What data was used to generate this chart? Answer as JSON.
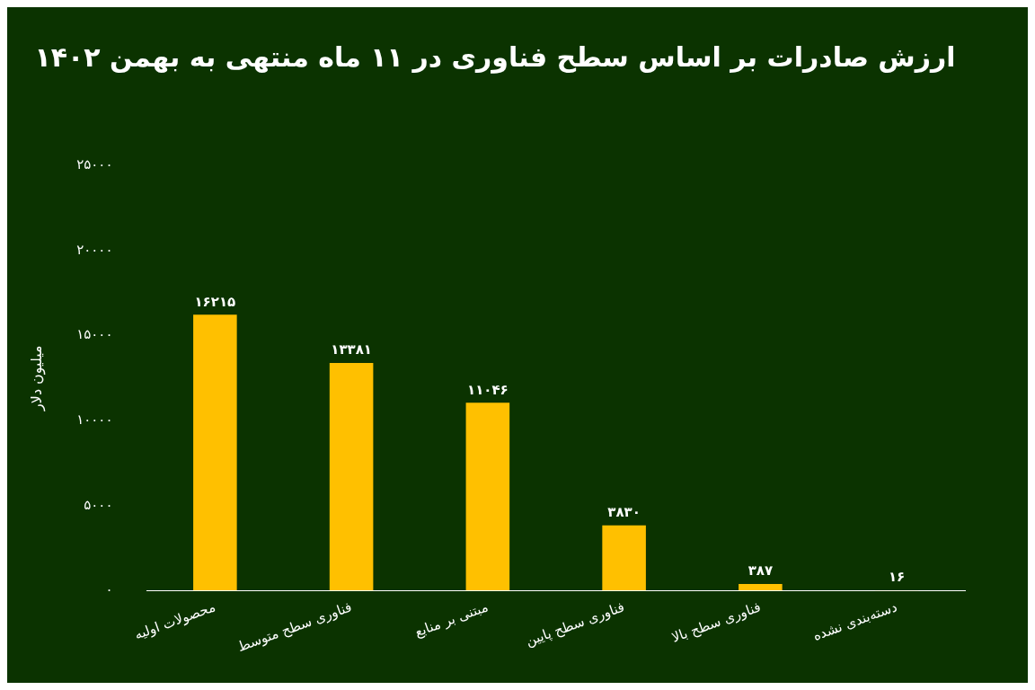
{
  "chart_data": {
    "type": "bar",
    "title": "ارزش صادرات بر اساس سطح فناوری در ۱۱ ماه منتهی به بهمن ۱۴۰۲",
    "ylabel": "میلیون دلار",
    "categories": [
      "محصولات اولیه",
      "فناوری سطح متوسط",
      "مبتنی بر منابع",
      "فناوری سطح پایین",
      "فناوری سطح بالا",
      "دسته‌بندی نشده"
    ],
    "values": [
      16215,
      13381,
      11046,
      3830,
      387,
      16
    ],
    "value_labels": [
      "۱۶۲۱۵",
      "۱۳۳۸۱",
      "۱۱۰۴۶",
      "۳۸۳۰",
      "۳۸۷",
      "۱۶"
    ],
    "color": "#ffc000",
    "ylim": [
      0,
      25000
    ],
    "yticks": [
      {
        "value": 0,
        "label": "۰"
      },
      {
        "value": 5000,
        "label": "۵۰۰۰"
      },
      {
        "value": 10000,
        "label": "۱۰۰۰۰"
      },
      {
        "value": 15000,
        "label": "۱۵۰۰۰"
      },
      {
        "value": 20000,
        "label": "۲۰۰۰۰"
      },
      {
        "value": 25000,
        "label": "۲۵۰۰۰"
      }
    ],
    "grid": false
  }
}
